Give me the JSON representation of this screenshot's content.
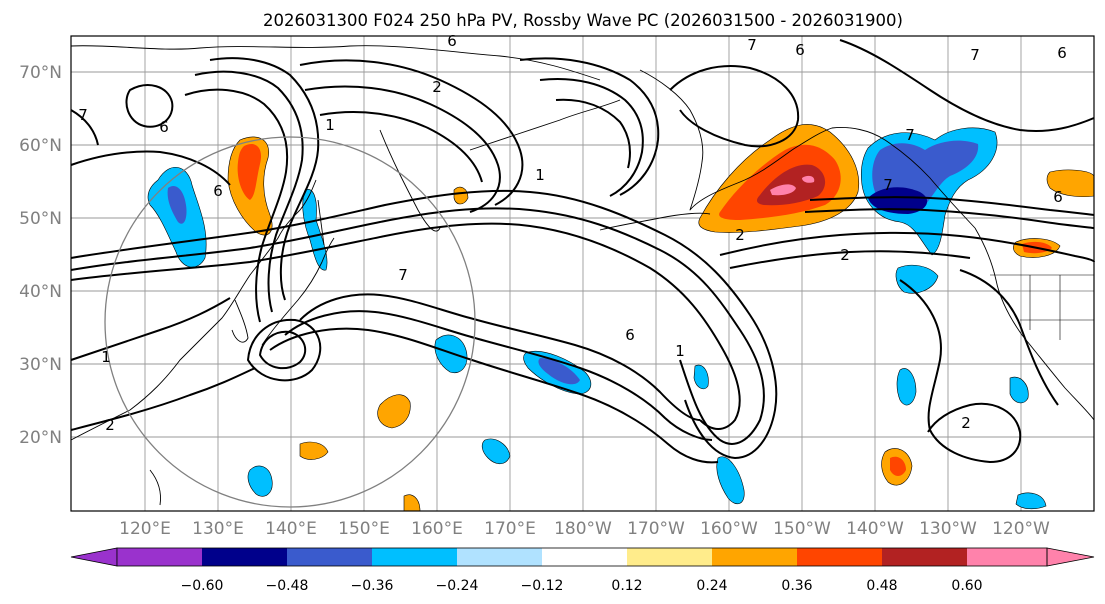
{
  "title": "2026031300 F024 250 hPa PV, Rossby Wave PC (2026031500 - 2026031900)",
  "map": {
    "lat_labels": [
      "70°N",
      "60°N",
      "50°N",
      "40°N",
      "30°N",
      "20°N"
    ],
    "lon_labels": [
      "120°E",
      "130°E",
      "140°E",
      "150°E",
      "160°E",
      "170°E",
      "180°W",
      "170°W",
      "160°W",
      "150°W",
      "140°W",
      "130°W",
      "120°W"
    ],
    "contour_labels": [
      "6",
      "7",
      "2",
      "1",
      "6",
      "7",
      "6",
      "7",
      "6",
      "2",
      "1",
      "2",
      "7",
      "6",
      "1",
      "2",
      "7",
      "2",
      "6",
      "1",
      "7",
      "6"
    ]
  },
  "colorbar": {
    "ticks": [
      "−0.60",
      "−0.48",
      "−0.36",
      "−0.24",
      "−0.12",
      "0.12",
      "0.24",
      "0.36",
      "0.48",
      "0.60"
    ],
    "colors": {
      "under": "#9a32cd",
      "b1": "#00008b",
      "b2": "#3a5bcd",
      "b3": "#00bfff",
      "b4": "#b0e2ff",
      "b5": "#ffffff",
      "b6": "#ffec8b",
      "b7": "#ffa500",
      "b8": "#ff4500",
      "b9": "#b22222",
      "over": "#ff82ab"
    }
  },
  "colors": {
    "neg_deep": "#00008b",
    "neg_mid": "#3a5bcd",
    "neg": "#00bfff",
    "neg_light": "#b0e2ff",
    "pos_light": "#ffec8b",
    "pos": "#ffa500",
    "pos_mid": "#ff4500",
    "pos_deep": "#b22222",
    "pos_max": "#ff82ab",
    "grid": "#9a9a9a",
    "label_gray": "#808080"
  }
}
